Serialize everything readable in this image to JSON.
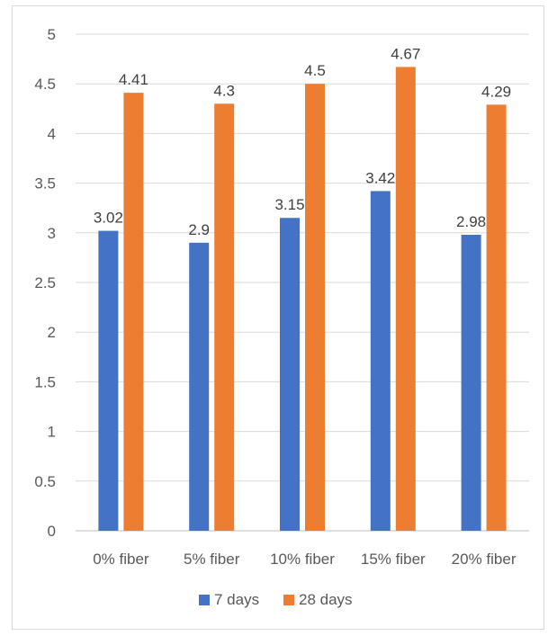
{
  "chart_data": {
    "type": "bar",
    "categories": [
      "0% fiber",
      "5% fiber",
      "10% fiber",
      "15% fiber",
      "20% fiber"
    ],
    "series": [
      {
        "name": "7 days",
        "color": "#4472c4",
        "values": [
          3.02,
          2.9,
          3.15,
          3.42,
          2.98
        ],
        "labels": [
          "3.02",
          "2.9",
          "3.15",
          "3.42",
          "2.98"
        ]
      },
      {
        "name": "28 days",
        "color": "#ed7d31",
        "values": [
          4.41,
          4.3,
          4.5,
          4.67,
          4.29
        ],
        "labels": [
          "4.41",
          "4.3",
          "4.5",
          "4.67",
          "4.29"
        ]
      }
    ],
    "ylim": [
      0,
      5
    ],
    "yticks": [
      "0",
      "0.5",
      "1",
      "1.5",
      "2",
      "2.5",
      "3",
      "3.5",
      "4",
      "4.5",
      "5"
    ],
    "grid": true,
    "legend_position": "bottom",
    "title": "",
    "xlabel": "",
    "ylabel": ""
  }
}
